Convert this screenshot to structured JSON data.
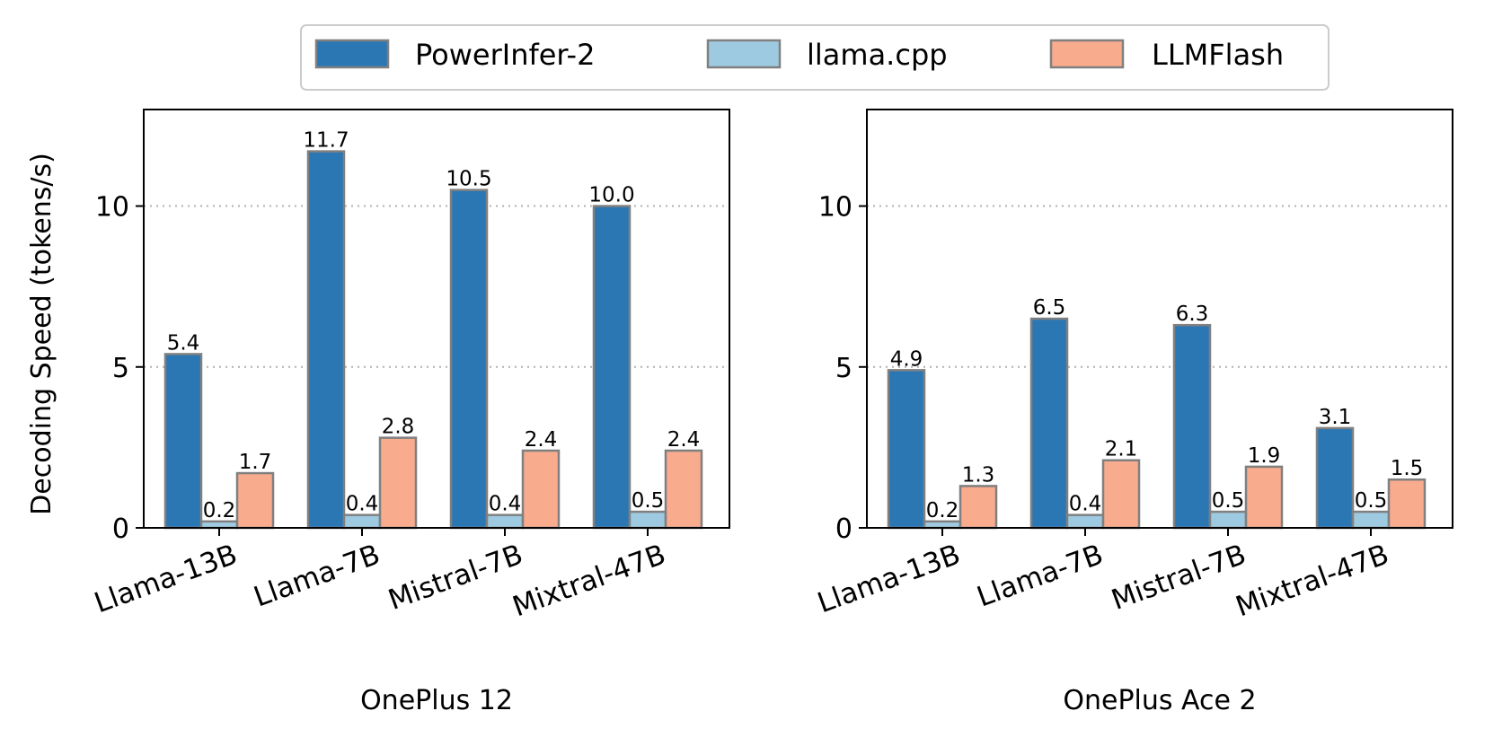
{
  "legend": {
    "placement": "top-center",
    "items": [
      {
        "name": "PowerInfer-2",
        "color": "#2a77b4"
      },
      {
        "name": "llama.cpp",
        "color": "#9ecae1"
      },
      {
        "name": "LLMFlash",
        "color": "#f9ab8e"
      }
    ]
  },
  "bar_edge_color": "#808080",
  "grid_color": "#b0b0b0",
  "chart_data": [
    {
      "type": "bar",
      "title": "",
      "xlabel": "OnePlus 12",
      "ylabel": "Decoding Speed (tokens/s)",
      "ylim": [
        0,
        13
      ],
      "yticks": [
        0,
        5,
        10
      ],
      "grid": "horizontal dotted at 5 and 10",
      "categories": [
        "Llama-13B",
        "Llama-7B",
        "Mistral-7B",
        "Mixtral-47B"
      ],
      "series": [
        {
          "name": "PowerInfer-2",
          "values": [
            5.4,
            11.7,
            10.5,
            10.0
          ],
          "labels": [
            "5.4",
            "11.7",
            "10.5",
            "10.0"
          ]
        },
        {
          "name": "llama.cpp",
          "values": [
            0.2,
            0.4,
            0.4,
            0.5
          ],
          "labels": [
            "0.2",
            "0.4",
            "0.4",
            "0.5"
          ]
        },
        {
          "name": "LLMFlash",
          "values": [
            1.7,
            2.8,
            2.4,
            2.4
          ],
          "labels": [
            "1.7",
            "2.8",
            "2.4",
            "2.4"
          ]
        }
      ]
    },
    {
      "type": "bar",
      "title": "",
      "xlabel": "OnePlus Ace 2",
      "ylabel": "",
      "ylim": [
        0,
        13
      ],
      "yticks": [
        0,
        5,
        10
      ],
      "grid": "horizontal dotted at 5 and 10",
      "categories": [
        "Llama-13B",
        "Llama-7B",
        "Mistral-7B",
        "Mixtral-47B"
      ],
      "series": [
        {
          "name": "PowerInfer-2",
          "values": [
            4.9,
            6.5,
            6.3,
            3.1
          ],
          "labels": [
            "4.9",
            "6.5",
            "6.3",
            "3.1"
          ]
        },
        {
          "name": "llama.cpp",
          "values": [
            0.2,
            0.4,
            0.5,
            0.5
          ],
          "labels": [
            "0.2",
            "0.4",
            "0.5",
            "0.5"
          ]
        },
        {
          "name": "LLMFlash",
          "values": [
            1.3,
            2.1,
            1.9,
            1.5
          ],
          "labels": [
            "1.3",
            "2.1",
            "1.9",
            "1.5"
          ]
        }
      ]
    }
  ]
}
